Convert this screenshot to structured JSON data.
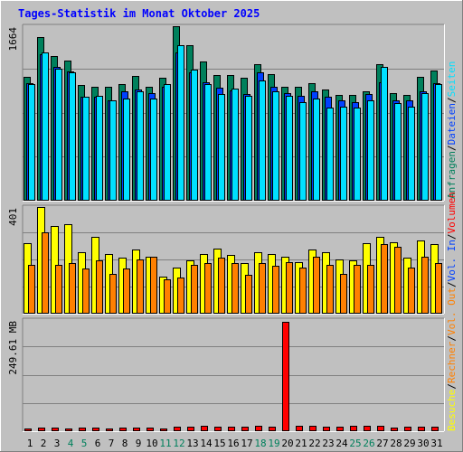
{
  "title": "Tages-Statistik im Monat Oktober 2025",
  "colors": {
    "background": "#c0c0c0",
    "frame_light": "#ffffff",
    "frame_dark": "#808080",
    "title": "#0000ff",
    "grid": "#808080",
    "anfragen": "#00805c",
    "dateien": "#0040ff",
    "seiten": "#00e0ff",
    "besuche": "#ffff00",
    "rechner": "#ff8000",
    "volumen": "#ff0000",
    "weekend_label": "#00805c",
    "label": "#000000"
  },
  "legend_top": [
    {
      "text": "Anfragen",
      "color": "#00805c"
    },
    {
      "text": "/",
      "color": "#000000"
    },
    {
      "text": "Dateien",
      "color": "#0040ff"
    },
    {
      "text": "/",
      "color": "#000000"
    },
    {
      "text": "Seiten",
      "color": "#00e0ff"
    }
  ],
  "legend_mid": [
    {
      "text": "Besuche",
      "color": "#ffff00"
    },
    {
      "text": "/",
      "color": "#000000"
    },
    {
      "text": "Rechner",
      "color": "#ff8000"
    },
    {
      "text": "/",
      "color": "#000000"
    },
    {
      "text": "Vol. Out",
      "color": "#ff8000"
    },
    {
      "text": "/",
      "color": "#000000"
    },
    {
      "text": "Vol. In",
      "color": "#0040ff"
    },
    {
      "text": "/",
      "color": "#000000"
    },
    {
      "text": "Volumen",
      "color": "#ff0000"
    }
  ],
  "chart_data": [
    {
      "type": "bar",
      "panel": "top",
      "max_label": "1664",
      "ylim": [
        0,
        1664
      ],
      "categories": [
        "1",
        "2",
        "3",
        "4",
        "5",
        "6",
        "7",
        "8",
        "9",
        "10",
        "11",
        "12",
        "13",
        "14",
        "15",
        "16",
        "17",
        "18",
        "19",
        "20",
        "21",
        "22",
        "23",
        "24",
        "25",
        "26",
        "27",
        "28",
        "29",
        "30",
        "31"
      ],
      "series": [
        {
          "name": "Anfragen",
          "values": [
            1180,
            1560,
            1380,
            1340,
            1100,
            1090,
            1090,
            1110,
            1190,
            1090,
            1170,
            1660,
            1480,
            1330,
            1200,
            1200,
            1170,
            1300,
            1210,
            1090,
            1090,
            1120,
            1060,
            1010,
            1010,
            1040,
            1300,
            1030,
            1010,
            1180,
            1240
          ]
        },
        {
          "name": "Dateien",
          "values": [
            1120,
            1400,
            1280,
            1230,
            990,
            990,
            960,
            1040,
            1060,
            1030,
            1090,
            1410,
            1220,
            1130,
            1080,
            1050,
            1020,
            1220,
            1090,
            1030,
            1000,
            1040,
            990,
            960,
            940,
            1020,
            1130,
            960,
            960,
            1040,
            1120
          ]
        },
        {
          "name": "Seiten",
          "values": [
            1110,
            1410,
            1260,
            1220,
            990,
            1000,
            960,
            970,
            1040,
            970,
            1110,
            1480,
            1250,
            1110,
            1020,
            1070,
            1000,
            1150,
            1040,
            1000,
            940,
            970,
            890,
            900,
            890,
            960,
            1280,
            930,
            900,
            1030,
            1110
          ]
        }
      ]
    },
    {
      "type": "bar",
      "panel": "middle",
      "max_label": "401",
      "ylim": [
        0,
        401
      ],
      "categories": [
        "1",
        "2",
        "3",
        "4",
        "5",
        "6",
        "7",
        "8",
        "9",
        "10",
        "11",
        "12",
        "13",
        "14",
        "15",
        "16",
        "17",
        "18",
        "19",
        "20",
        "21",
        "22",
        "23",
        "24",
        "25",
        "26",
        "27",
        "28",
        "29",
        "30",
        "31"
      ],
      "series": [
        {
          "name": "Besuche",
          "values": [
            265,
            400,
            330,
            335,
            230,
            290,
            225,
            210,
            240,
            215,
            140,
            175,
            200,
            225,
            245,
            220,
            190,
            230,
            225,
            215,
            195,
            240,
            230,
            205,
            200,
            265,
            290,
            270,
            210,
            275,
            260
          ]
        },
        {
          "name": "Rechner",
          "values": [
            185,
            305,
            185,
            190,
            170,
            200,
            150,
            170,
            205,
            215,
            130,
            135,
            185,
            190,
            210,
            190,
            145,
            190,
            180,
            195,
            175,
            215,
            185,
            150,
            185,
            185,
            260,
            250,
            175,
            215,
            190
          ]
        }
      ]
    },
    {
      "type": "bar",
      "panel": "bottom",
      "max_label": "249.61 MB",
      "ylabel": "MB",
      "ylim": [
        0,
        249.61
      ],
      "categories": [
        "1",
        "2",
        "3",
        "4",
        "5",
        "6",
        "7",
        "8",
        "9",
        "10",
        "11",
        "12",
        "13",
        "14",
        "15",
        "16",
        "17",
        "18",
        "19",
        "20",
        "21",
        "22",
        "23",
        "24",
        "25",
        "26",
        "27",
        "28",
        "29",
        "30",
        "31"
      ],
      "series": [
        {
          "name": "Volumen",
          "values": [
            7,
            8,
            8,
            7,
            8,
            8,
            7,
            8,
            8,
            8,
            7,
            10,
            10,
            12,
            11,
            10,
            11,
            13,
            11,
            245,
            12,
            12,
            10,
            10,
            12,
            12,
            13,
            9,
            10,
            11,
            10
          ]
        }
      ]
    }
  ],
  "weekend_days": [
    "4",
    "5",
    "11",
    "12",
    "18",
    "19",
    "25",
    "26"
  ]
}
